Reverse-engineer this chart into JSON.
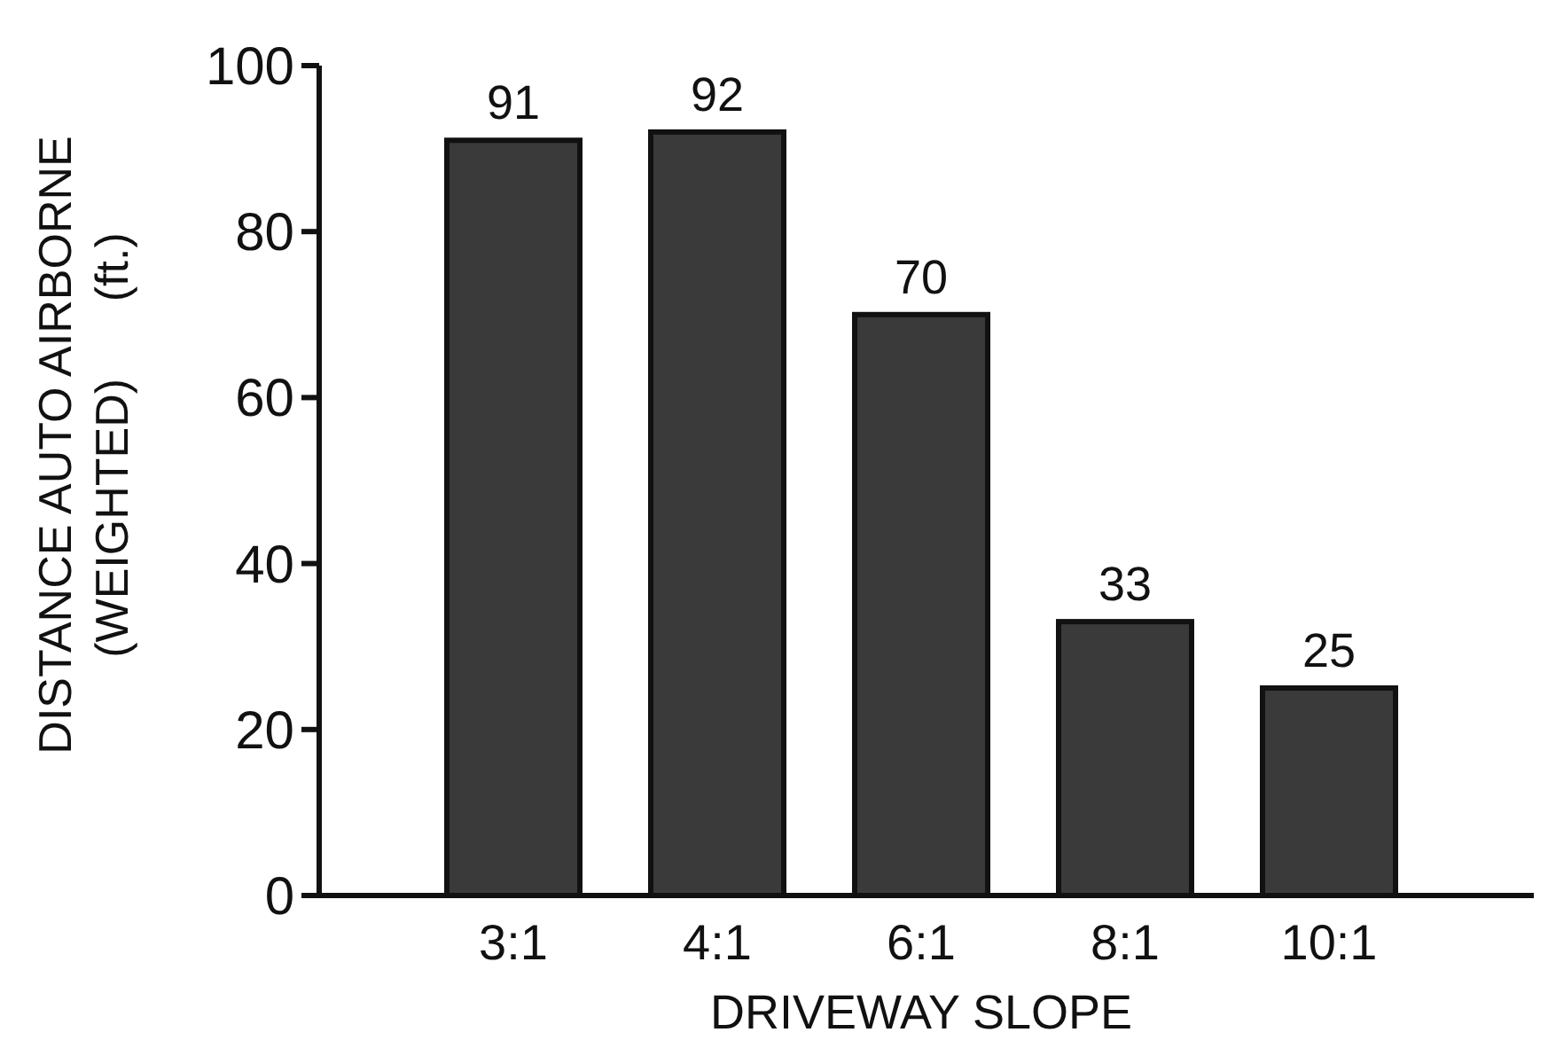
{
  "chart_data": {
    "type": "bar",
    "xlabel": "DRIVEWAY SLOPE",
    "ylabel": "DISTANCE AUTO AIRBORNE\n(WEIGHTED)      (ft.)",
    "categories": [
      "3:1",
      "4:1",
      "6:1",
      "8:1",
      "10:1"
    ],
    "values": [
      91,
      92,
      70,
      33,
      25
    ],
    "color": "#3a3a3a",
    "ylim": [
      0,
      100
    ],
    "yticks": [
      0,
      20,
      40,
      60,
      80,
      100
    ],
    "data_labels": true
  }
}
